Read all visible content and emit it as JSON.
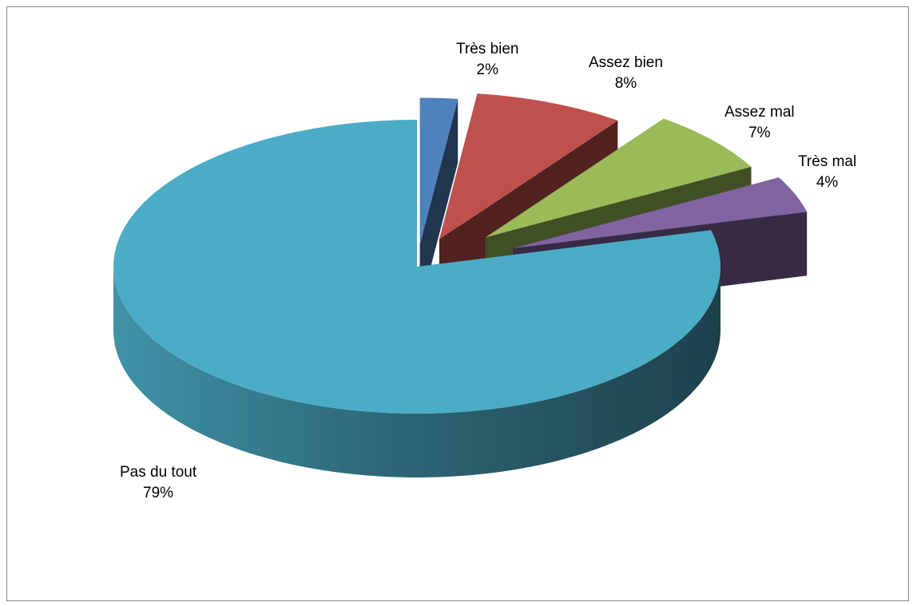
{
  "chart_data": {
    "type": "pie",
    "style": "3d-exploded",
    "categories": [
      "Très bien",
      "Assez bien",
      "Assez mal",
      "Très mal",
      "Pas du tout"
    ],
    "values": [
      2,
      8,
      7,
      4,
      79
    ],
    "value_labels": [
      "2%",
      "8%",
      "7%",
      "4%",
      "79%"
    ],
    "colors": [
      "#4F81BD",
      "#C0504D",
      "#9BBB59",
      "#8064A2",
      "#4BACC6"
    ],
    "title": "",
    "legend": "none"
  }
}
